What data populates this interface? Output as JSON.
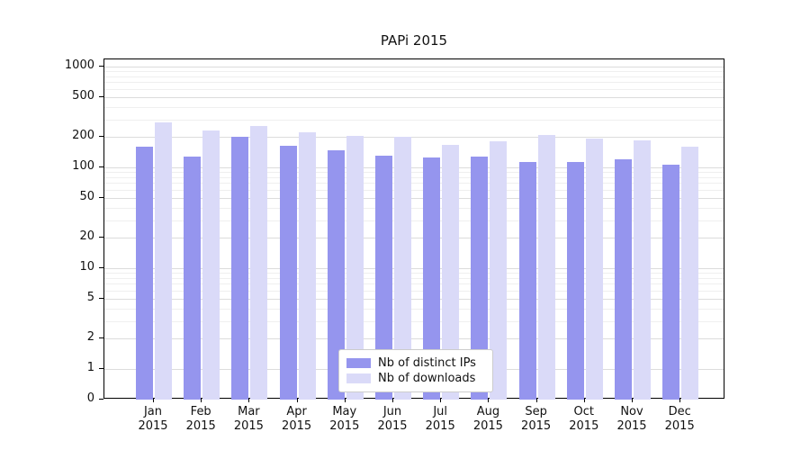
{
  "title": "PAPi 2015",
  "chart_data": {
    "type": "bar",
    "title": "PAPi 2015",
    "categories": [
      "Jan 2015",
      "Feb 2015",
      "Mar 2015",
      "Apr 2015",
      "May 2015",
      "Jun 2015",
      "Jul 2015",
      "Aug 2015",
      "Sep 2015",
      "Oct 2015",
      "Nov 2015",
      "Dec 2015"
    ],
    "series": [
      {
        "name": "Nb of distinct IPs",
        "color": "#9595ee",
        "values": [
          160,
          128,
          200,
          163,
          148,
          130,
          126,
          128,
          113,
          113,
          120,
          106
        ]
      },
      {
        "name": "Nb of downloads",
        "color": "#dadaf8",
        "values": [
          280,
          232,
          258,
          222,
          205,
          200,
          168,
          180,
          208,
          192,
          184,
          162
        ]
      }
    ],
    "yscale": "log",
    "yticks": [
      0,
      1,
      2,
      5,
      10,
      20,
      50,
      100,
      200,
      500,
      1000
    ],
    "ylim": [
      0,
      1000
    ],
    "xlabel": "",
    "ylabel": "",
    "grid": "horizontal",
    "legend_position": "lower center"
  }
}
